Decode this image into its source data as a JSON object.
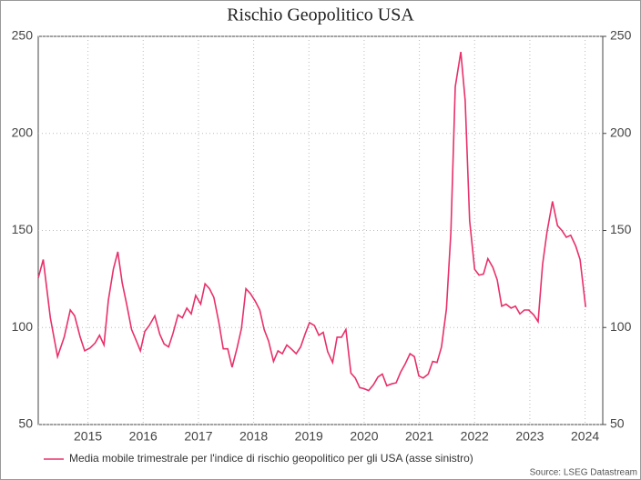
{
  "chart_data": {
    "type": "line",
    "title": "Rischio Geopolitico USA",
    "source": "Source: LSEG Datastream",
    "x": [
      2014.6,
      2014.69,
      2014.82,
      2014.95,
      2015.07,
      2015.18,
      2015.26,
      2015.36,
      2015.44,
      2015.54,
      2015.63,
      2015.71,
      2015.79,
      2015.87,
      2015.96,
      2016.04,
      2016.12,
      2016.2,
      2016.29,
      2016.37,
      2016.45,
      2016.53,
      2016.61,
      2016.71,
      2016.8,
      2016.88,
      2016.96,
      2017.04,
      2017.13,
      2017.21,
      2017.29,
      2017.37,
      2017.45,
      2017.54,
      2017.62,
      2017.7,
      2017.78,
      2017.87,
      2017.95,
      2018.03,
      2018.11,
      2018.2,
      2018.28,
      2018.36,
      2018.44,
      2018.53,
      2018.61,
      2018.69,
      2018.77,
      2018.86,
      2018.94,
      2019.02,
      2019.1,
      2019.18,
      2019.27,
      2019.35,
      2019.43,
      2019.51,
      2019.6,
      2019.68,
      2019.76,
      2019.84,
      2019.93,
      2020.01,
      2020.09,
      2020.17,
      2020.26,
      2020.34,
      2020.42,
      2020.5,
      2020.58,
      2020.67,
      2020.75,
      2020.83,
      2020.91,
      2021.0,
      2021.08,
      2021.16,
      2021.24,
      2021.33,
      2021.41,
      2021.49,
      2021.57,
      2021.66,
      2021.74,
      2021.82,
      2021.9,
      2021.99,
      2022.07,
      2022.15,
      2022.25,
      2022.33,
      2022.41,
      2022.5,
      2022.58,
      2022.66,
      2022.74,
      2022.83,
      2022.91,
      2022.99,
      2023.07,
      2023.16,
      2023.24,
      2023.32,
      2023.4,
      2023.48,
      2023.57,
      2023.65,
      2023.73,
      2023.81,
      2023.91,
      2024.0,
      2024.08,
      2024.16,
      2024.24,
      2024.33,
      2024.41,
      2024.51
    ],
    "series": [
      {
        "name": "Media mobile trimestrale per l'indice di rischio geopolitico per gli USA (asse sinistro)",
        "color": "#e8306a",
        "values": [
          125.5,
          135,
          105,
          85,
          95,
          109,
          106,
          95,
          88,
          89.5,
          92,
          96,
          91,
          114,
          130,
          139,
          123,
          112,
          99,
          93.5,
          88,
          98,
          101,
          106,
          96.5,
          91.5,
          90,
          97,
          106.5,
          105,
          110,
          107,
          116.5,
          112,
          122.5,
          120,
          115.5,
          102.5,
          89,
          89,
          79.5,
          89.5,
          99.5,
          120,
          117.5,
          113.5,
          109,
          99,
          93,
          82.5,
          88,
          86.5,
          91,
          89,
          86.5,
          90,
          96.5,
          102.5,
          101,
          96,
          97.5,
          87.5,
          82,
          95,
          95,
          99,
          76.5,
          74,
          69,
          68.5,
          67.5,
          70.5,
          74.5,
          76,
          70,
          71,
          71.5,
          77,
          81,
          86.5,
          85,
          75,
          74,
          76,
          82.5,
          82,
          90,
          109.5,
          149,
          224,
          242,
          217,
          155,
          130,
          127,
          127.5,
          135.5,
          131,
          124.5,
          111,
          112,
          110,
          111,
          107,
          109,
          109,
          106.5,
          103,
          132.5,
          149,
          165,
          152.5,
          150,
          146.5,
          147.5,
          142,
          135,
          110.5
        ]
      }
    ],
    "xlim": [
      2014.6,
      2024.82
    ],
    "xticks": [
      {
        "value": 2015.5,
        "label": "2015"
      },
      {
        "value": 2016.5,
        "label": "2016"
      },
      {
        "value": 2017.5,
        "label": "2017"
      },
      {
        "value": 2018.5,
        "label": "2018"
      },
      {
        "value": 2019.5,
        "label": "2019"
      },
      {
        "value": 2020.5,
        "label": "2020"
      },
      {
        "value": 2021.5,
        "label": "2021"
      },
      {
        "value": 2022.5,
        "label": "2022"
      },
      {
        "value": 2023.5,
        "label": "2023"
      },
      {
        "value": 2024.5,
        "label": "2024"
      }
    ],
    "ylim": [
      50,
      250
    ],
    "yticks": [
      50,
      100,
      150,
      200,
      250
    ],
    "y2lim": [
      50,
      250
    ],
    "y2ticks": [
      50,
      100,
      150,
      200,
      250
    ],
    "grid": true
  }
}
